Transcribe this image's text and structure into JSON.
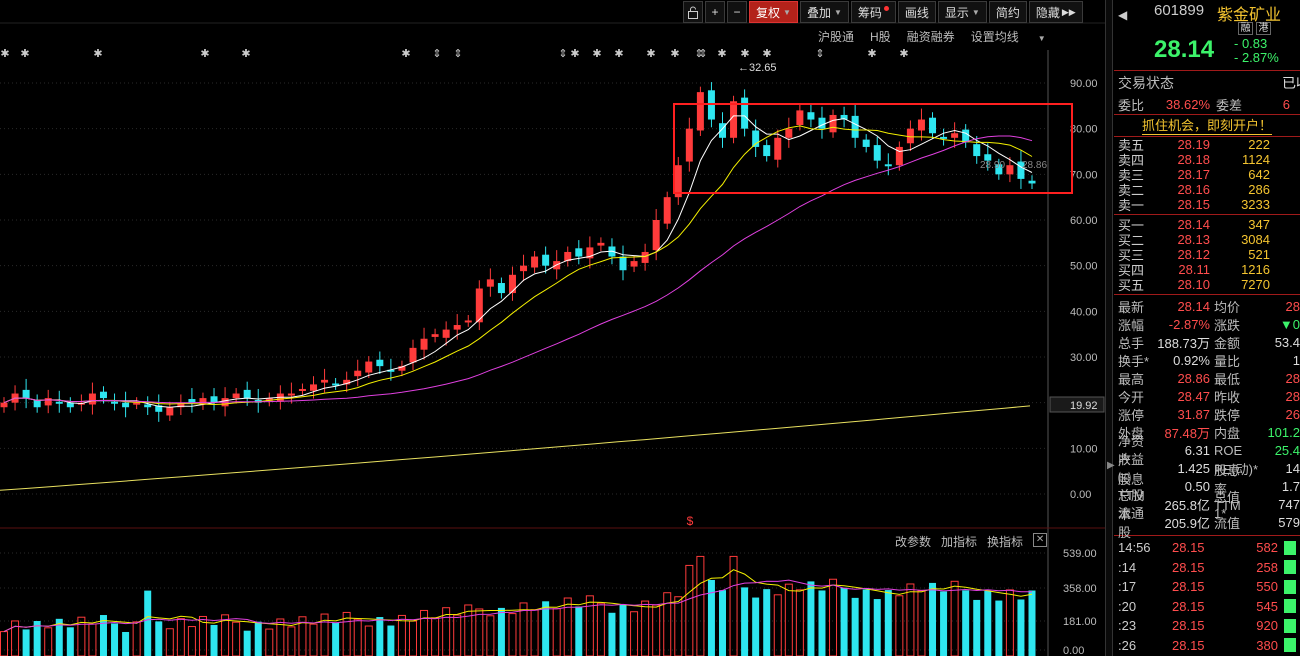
{
  "toolbar": {
    "lock_icon": "lock-icon",
    "plus_label": "+",
    "minus_label": "−",
    "fuquan_label": "复权",
    "diejia_label": "叠加",
    "chouma_label": "筹码",
    "huaxian_label": "画线",
    "xianshi_label": "显示",
    "jianjie_label": "简约",
    "yincang_label": "隐藏",
    "next_icon": "double-right-icon",
    "colors": {
      "active_bg": "#b3221a"
    }
  },
  "sublinks": {
    "hugutong": "沪股通",
    "hgu": "H股",
    "rongzi": "融资融券",
    "shezhi": "设置均线"
  },
  "volume_toolbar": {
    "gai": "改参数",
    "jia": "加指标",
    "huan": "换指标",
    "close": "✕"
  },
  "chart_data": {
    "type": "candlestick",
    "price_axis_ticks": [
      "90.00",
      "80.00",
      "70.00",
      "60.00",
      "50.00",
      "40.00",
      "30.00",
      "20.00",
      "10.00",
      "0.00"
    ],
    "current_price_label": "19.92",
    "high_marker_label": "32.65",
    "ma_overlay_labels": [
      "28.90",
      "28.86"
    ],
    "volume_axis_ticks": [
      "539.00",
      "358.00",
      "181.00",
      "0.00"
    ],
    "event_marker": "$",
    "marker_symbols": "✱ ✱ ✱ ✱ ✱ ✱ ⇕ ⇕ ⇕ ✱ ✱ ✱ ✱ ✱ ⇕ ⇕ ✱ ✱ ✱ ⇕ ✱ ✱ ⇕ ✱",
    "box_color": "#ff2020",
    "up_color": "#ff3b3b",
    "down_color": "#2ee6f0",
    "ma_colors": [
      "#ffffff",
      "#f4f000",
      "#e040e0",
      "#e8e060"
    ]
  },
  "stock": {
    "code": "601899",
    "name": "紫金矿业",
    "tag1": "融",
    "tag2": "港",
    "price": "28.14",
    "change": "- 0.83",
    "change_pct": "- 2.87%"
  },
  "status": {
    "label": "交易状态",
    "value": "已收"
  },
  "weibi": {
    "label": "委比",
    "value": "38.62%",
    "label2": "委差",
    "value2": "6"
  },
  "promo": "抓住机会，即刻开户！",
  "orderbook": {
    "sell": [
      {
        "label": "卖五",
        "price": "28.19",
        "vol": "222"
      },
      {
        "label": "卖四",
        "price": "28.18",
        "vol": "1124"
      },
      {
        "label": "卖三",
        "price": "28.17",
        "vol": "642"
      },
      {
        "label": "卖二",
        "price": "28.16",
        "vol": "286"
      },
      {
        "label": "卖一",
        "price": "28.15",
        "vol": "3233"
      }
    ],
    "buy": [
      {
        "label": "买一",
        "price": "28.14",
        "vol": "347"
      },
      {
        "label": "买二",
        "price": "28.13",
        "vol": "3084"
      },
      {
        "label": "买三",
        "price": "28.12",
        "vol": "521"
      },
      {
        "label": "买四",
        "price": "28.11",
        "vol": "1216"
      },
      {
        "label": "买五",
        "price": "28.10",
        "vol": "7270"
      }
    ]
  },
  "quote": [
    {
      "k": "最新",
      "v": "28.14",
      "vc": "red",
      "k2": "均价",
      "v2": "28"
    },
    {
      "k": "涨幅",
      "v": "-2.87%",
      "vc": "red",
      "k2": "涨跌",
      "v2": "▼0"
    },
    {
      "k": "总手",
      "v": "188.73万",
      "vc": "white",
      "k2": "金额",
      "v2": "53.4"
    },
    {
      "k": "换手*",
      "v": "0.92%",
      "vc": "white",
      "k2": "量比",
      "v2": "1"
    },
    {
      "k": "最高",
      "v": "28.86",
      "vc": "red",
      "k2": "最低",
      "v2": "28"
    },
    {
      "k": "今开",
      "v": "28.47",
      "vc": "red",
      "k2": "昨收",
      "v2": "28"
    },
    {
      "k": "涨停",
      "v": "31.87",
      "vc": "red",
      "k2": "跌停",
      "v2": "26"
    },
    {
      "k": "外盘",
      "v": "87.48万",
      "vc": "red",
      "k2": "内盘",
      "v2": "101.2"
    },
    {
      "k": "净资产",
      "v": "6.31",
      "vc": "white",
      "k2": "ROE",
      "v2": "25.4"
    },
    {
      "k": "收益㈢",
      "v": "1.425",
      "vc": "white",
      "k2": "PE(动)*",
      "v2": "14"
    },
    {
      "k": "股息TTM",
      "v": "0.50",
      "vc": "white",
      "k2": "股息率TTM",
      "v2": "1.7"
    },
    {
      "k": "总股本",
      "v": "265.8亿",
      "vc": "white",
      "k2": "总值1*",
      "v2": "747"
    },
    {
      "k": "流通股",
      "v": "205.9亿",
      "vc": "white",
      "k2": "流值",
      "v2": "579"
    }
  ],
  "ticks": [
    {
      "t": "14:56",
      "p": "28.15",
      "v": "582"
    },
    {
      "t": ":14",
      "p": "28.15",
      "v": "258"
    },
    {
      "t": ":17",
      "p": "28.15",
      "v": "550"
    },
    {
      "t": ":20",
      "p": "28.15",
      "v": "545"
    },
    {
      "t": ":23",
      "p": "28.15",
      "v": "920"
    },
    {
      "t": ":26",
      "p": "28.15",
      "v": "380"
    }
  ]
}
